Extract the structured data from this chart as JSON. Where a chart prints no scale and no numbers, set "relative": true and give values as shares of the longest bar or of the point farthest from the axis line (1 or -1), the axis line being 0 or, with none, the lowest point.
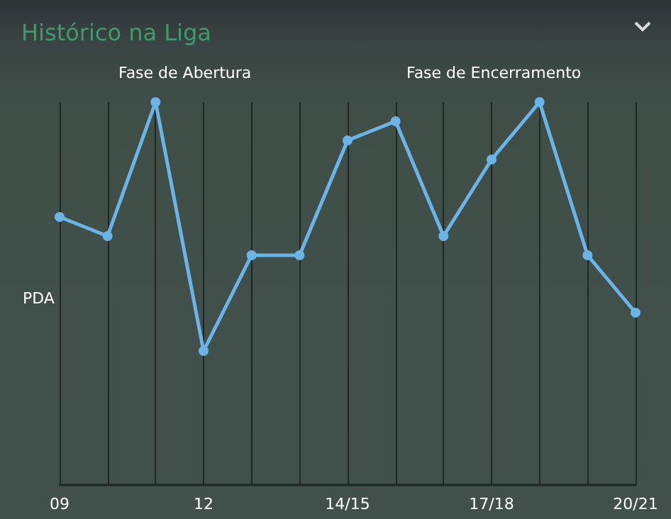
{
  "chart_data": {
    "type": "line",
    "title": "Histórico na Liga",
    "ylabel": "PDA",
    "relative": true,
    "categories": [
      "09",
      null,
      null,
      "12",
      null,
      null,
      "14/15",
      null,
      null,
      "17/18",
      null,
      null,
      "20/21"
    ],
    "series": [
      {
        "color": "#6ab4e8",
        "values": [
          0.7,
          0.65,
          1,
          0.35,
          0.6,
          0.6,
          0.9,
          0.95,
          0.65,
          0.85,
          1,
          0.6,
          0.45
        ]
      }
    ],
    "annotations": [
      "Fase de Abertura",
      "Fase de Encerramento"
    ],
    "grid": "x",
    "marker": "circle",
    "line_style": "solid"
  }
}
